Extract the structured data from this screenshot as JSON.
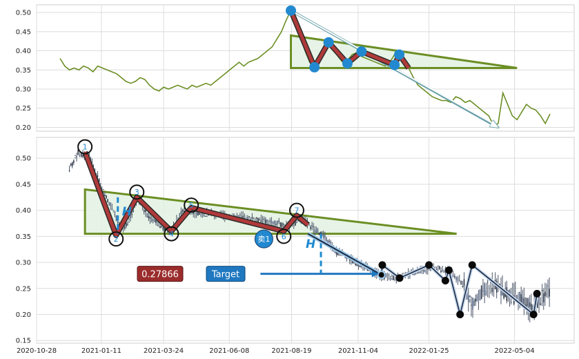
{
  "chart_data": [
    {
      "type": "line",
      "panel": "top",
      "ylim": [
        0.19,
        0.52
      ],
      "yticks": [
        0.2,
        0.25,
        0.3,
        0.35,
        0.4,
        0.45,
        0.5
      ],
      "color": "#6b8e23",
      "series": [
        {
          "values": [
            0.38,
            0.36,
            0.35,
            0.355,
            0.35,
            0.36,
            0.355,
            0.345,
            0.36,
            0.355,
            0.35,
            0.345,
            0.34,
            0.33,
            0.32,
            0.315,
            0.32,
            0.33,
            0.325,
            0.31,
            0.3,
            0.295,
            0.305,
            0.3,
            0.305,
            0.31,
            0.305,
            0.3,
            0.31,
            0.305,
            0.31,
            0.315,
            0.31,
            0.32,
            0.33,
            0.34,
            0.35,
            0.36,
            0.37,
            0.36,
            0.37,
            0.375,
            0.38,
            0.39,
            0.4,
            0.41,
            0.43,
            0.45,
            0.48,
            0.505,
            0.47,
            0.44,
            0.4,
            0.37,
            0.36,
            0.38,
            0.4,
            0.42,
            0.41,
            0.385,
            0.37,
            0.375,
            0.39,
            0.395,
            0.385,
            0.38,
            0.375,
            0.37,
            0.365,
            0.36,
            0.37,
            0.39,
            0.385,
            0.37,
            0.355,
            0.33,
            0.31,
            0.3,
            0.29,
            0.28,
            0.275,
            0.27,
            0.27,
            0.265,
            0.28,
            0.275,
            0.265,
            0.27,
            0.26,
            0.25,
            0.24,
            0.23,
            0.205,
            0.21,
            0.29,
            0.26,
            0.23,
            0.22,
            0.24,
            0.26,
            0.25,
            0.245,
            0.23,
            0.21,
            0.235
          ]
        }
      ],
      "pivots": [
        {
          "i": 49,
          "v": 0.505
        },
        {
          "i": 54,
          "v": 0.357
        },
        {
          "i": 57,
          "v": 0.422
        },
        {
          "i": 61,
          "v": 0.367
        },
        {
          "i": 64,
          "v": 0.398
        },
        {
          "i": 71,
          "v": 0.363
        },
        {
          "i": 72,
          "v": 0.39
        },
        {
          "i": 74,
          "v": 0.355
        }
      ],
      "triangle": [
        {
          "i": 49,
          "v": 0.44
        },
        {
          "i": 49,
          "v": 0.355
        },
        {
          "i": 97,
          "v": 0.355
        }
      ],
      "downtrend": [
        {
          "i": 49,
          "v": 0.505
        },
        {
          "i": 93,
          "v": 0.2
        }
      ],
      "markers": [
        {
          "i": 49,
          "v": 0.505
        },
        {
          "i": 54,
          "v": 0.357
        },
        {
          "i": 57,
          "v": 0.422
        },
        {
          "i": 61,
          "v": 0.367
        },
        {
          "i": 64,
          "v": 0.398
        },
        {
          "i": 71,
          "v": 0.363
        },
        {
          "i": 72,
          "v": 0.39
        }
      ]
    },
    {
      "type": "candlestick",
      "panel": "bottom",
      "xlim": [
        "2020-10-28",
        "2022-07-12"
      ],
      "x_tick_labels": [
        "2020-10-28",
        "2021-01-11",
        "2021-03-24",
        "2021-06-08",
        "2021-08-19",
        "2021-11-04",
        "2022-01-25",
        "2022-05-04"
      ],
      "ylim": [
        0.145,
        0.54
      ],
      "yticks": [
        0.15,
        0.2,
        0.25,
        0.3,
        0.35,
        0.4,
        0.45,
        0.5
      ],
      "price_path": [
        {
          "d": "2020-12-05",
          "v": 0.48
        },
        {
          "d": "2020-12-15",
          "v": 0.51
        },
        {
          "d": "2020-12-28",
          "v": 0.5
        },
        {
          "d": "2021-01-05",
          "v": 0.47
        },
        {
          "d": "2021-01-15",
          "v": 0.43
        },
        {
          "d": "2021-01-25",
          "v": 0.4
        },
        {
          "d": "2021-02-02",
          "v": 0.36
        },
        {
          "d": "2021-02-12",
          "v": 0.38
        },
        {
          "d": "2021-02-22",
          "v": 0.425
        },
        {
          "d": "2021-03-05",
          "v": 0.39
        },
        {
          "d": "2021-03-20",
          "v": 0.37
        },
        {
          "d": "2021-04-01",
          "v": 0.36
        },
        {
          "d": "2021-04-15",
          "v": 0.4
        },
        {
          "d": "2021-05-01",
          "v": 0.395
        },
        {
          "d": "2021-06-01",
          "v": 0.39
        },
        {
          "d": "2021-07-01",
          "v": 0.385
        },
        {
          "d": "2021-08-01",
          "v": 0.375
        },
        {
          "d": "2021-08-20",
          "v": 0.37
        },
        {
          "d": "2021-08-30",
          "v": 0.385
        },
        {
          "d": "2021-09-10",
          "v": 0.37
        },
        {
          "d": "2021-09-25",
          "v": 0.35
        },
        {
          "d": "2021-10-10",
          "v": 0.32
        },
        {
          "d": "2021-11-01",
          "v": 0.3
        },
        {
          "d": "2021-11-20",
          "v": 0.285
        },
        {
          "d": "2021-12-01",
          "v": 0.275
        },
        {
          "d": "2021-12-20",
          "v": 0.27
        },
        {
          "d": "2022-01-15",
          "v": 0.285
        },
        {
          "d": "2022-02-01",
          "v": 0.29
        },
        {
          "d": "2022-02-20",
          "v": 0.28
        },
        {
          "d": "2022-03-05",
          "v": 0.26
        },
        {
          "d": "2022-03-15",
          "v": 0.22
        },
        {
          "d": "2022-03-25",
          "v": 0.24
        },
        {
          "d": "2022-04-10",
          "v": 0.26
        },
        {
          "d": "2022-04-25",
          "v": 0.24
        },
        {
          "d": "2022-05-10",
          "v": 0.23
        },
        {
          "d": "2022-05-25",
          "v": 0.21
        },
        {
          "d": "2022-06-05",
          "v": 0.235
        },
        {
          "d": "2022-06-15",
          "v": 0.245
        }
      ],
      "pattern_line": [
        {
          "d": "2020-12-23",
          "v": 0.512
        },
        {
          "d": "2021-01-28",
          "v": 0.352
        },
        {
          "d": "2021-02-21",
          "v": 0.425
        },
        {
          "d": "2021-04-02",
          "v": 0.36
        },
        {
          "d": "2021-04-25",
          "v": 0.405
        },
        {
          "d": "2021-08-10",
          "v": 0.36
        },
        {
          "d": "2021-08-25",
          "v": 0.39
        },
        {
          "d": "2021-09-07",
          "v": 0.372
        }
      ],
      "pattern_points": [
        {
          "label": "1",
          "d": "2020-12-23",
          "v": 0.522
        },
        {
          "label": "2",
          "d": "2021-01-28",
          "v": 0.345
        },
        {
          "label": "3",
          "d": "2021-02-21",
          "v": 0.435
        },
        {
          "label": "4",
          "d": "2021-04-02",
          "v": 0.355
        },
        {
          "label": "5",
          "d": "2021-04-25",
          "v": 0.41
        },
        {
          "label": "6",
          "d": "2021-08-10",
          "v": 0.35
        },
        {
          "label": "7",
          "d": "2021-08-25",
          "v": 0.4
        }
      ],
      "triangle": [
        {
          "d": "2020-12-23",
          "v": 0.44
        },
        {
          "d": "2020-12-23",
          "v": 0.355
        },
        {
          "d": "2022-02-26",
          "v": 0.355
        }
      ],
      "h_marks": [
        {
          "label": "H",
          "d": "2021-01-30",
          "v_top": 0.425,
          "v_bottom": 0.355
        },
        {
          "label": "H",
          "d": "2021-09-22",
          "v_top": 0.355,
          "v_bottom": 0.28
        }
      ],
      "signal": {
        "label": "卖1",
        "d": "2021-07-18",
        "v": 0.345
      },
      "target_price": {
        "label": "0.27866",
        "value": 0.27866
      },
      "target_button": {
        "label": "Target",
        "from_d": "2021-07-14",
        "to_d": "2021-12-01",
        "v": 0.278
      },
      "future_path": [
        {
          "d": "2021-12-01",
          "v": 0.276
        },
        {
          "d": "2021-12-02",
          "v": 0.295
        },
        {
          "d": "2021-12-22",
          "v": 0.27
        },
        {
          "d": "2022-01-25",
          "v": 0.295
        },
        {
          "d": "2022-02-13",
          "v": 0.265
        },
        {
          "d": "2022-02-17",
          "v": 0.285
        },
        {
          "d": "2022-03-02",
          "v": 0.2
        },
        {
          "d": "2022-03-16",
          "v": 0.295
        },
        {
          "d": "2022-05-26",
          "v": 0.2
        },
        {
          "d": "2022-05-30",
          "v": 0.24
        }
      ]
    }
  ]
}
